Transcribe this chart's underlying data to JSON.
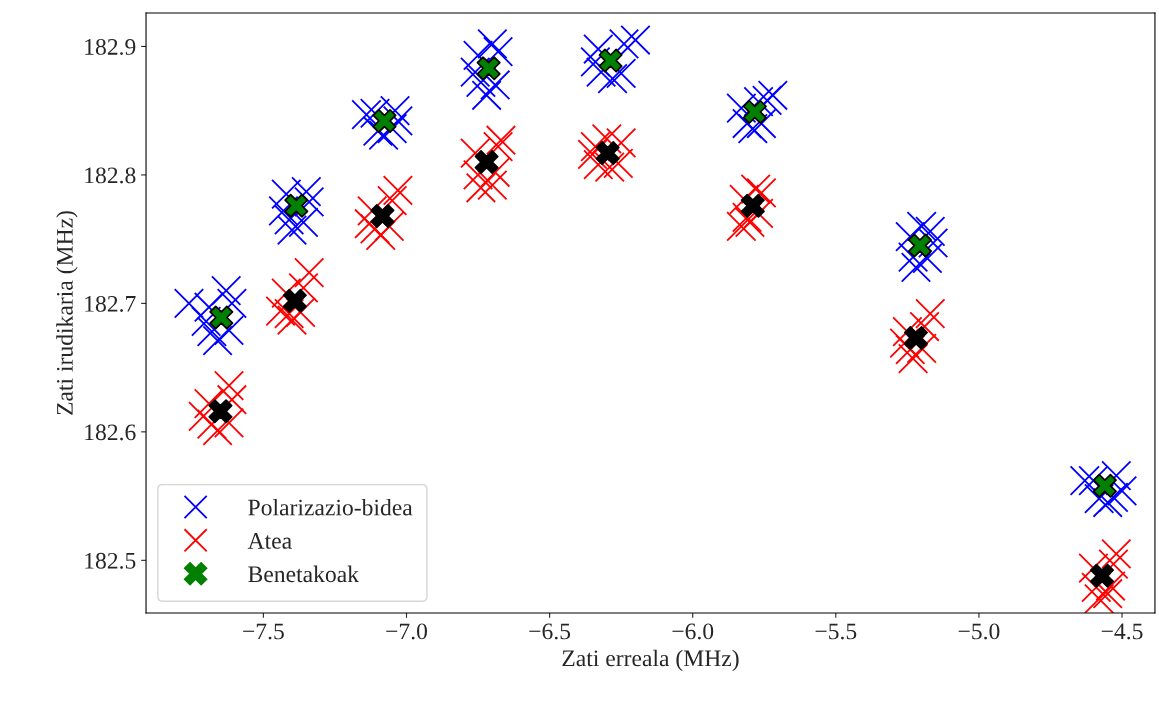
{
  "chart_data": {
    "type": "scatter",
    "xlabel": "Zati erreala (MHz)",
    "ylabel": "Zati irudikaria (MHz)",
    "xlim": [
      -7.91,
      -4.385
    ],
    "xticks": [
      {
        "value": -7.5,
        "label": "−7.5"
      },
      {
        "value": -7.0,
        "label": "−7.0"
      },
      {
        "value": -6.5,
        "label": "−6.5"
      },
      {
        "value": -6.0,
        "label": "−6.0"
      },
      {
        "value": -5.5,
        "label": "−5.5"
      },
      {
        "value": -5.0,
        "label": "−5.0"
      },
      {
        "value": -4.5,
        "label": "−4.5"
      }
    ],
    "ylim": [
      182.459,
      182.926
    ],
    "yticks": [
      {
        "value": 182.5,
        "label": "182.5"
      },
      {
        "value": 182.6,
        "label": "182.6"
      },
      {
        "value": 182.7,
        "label": "182.7"
      },
      {
        "value": 182.8,
        "label": "182.8"
      },
      {
        "value": 182.9,
        "label": "182.9"
      }
    ],
    "marker": "cross",
    "grid": false,
    "legend": "bottom left",
    "series": [
      {
        "name": "Polarizazio-bidea",
        "color": "#0000ff",
        "x": [
          -7.69,
          -7.61,
          -7.68,
          -7.62,
          -7.76,
          -7.63,
          -7.66,
          -7.7,
          -7.42,
          -7.35,
          -7.41,
          -7.36,
          -7.4,
          -7.34,
          -7.43,
          -7.11,
          -7.04,
          -7.1,
          -7.05,
          -7.14,
          -7.03,
          -7.08,
          -6.75,
          -6.68,
          -6.74,
          -6.69,
          -6.72,
          -6.7,
          -6.76,
          -6.33,
          -6.24,
          -6.32,
          -6.25,
          -6.2,
          -6.34,
          -6.28,
          -5.83,
          -5.74,
          -5.81,
          -5.76,
          -5.72,
          -5.79,
          -5.77,
          -5.24,
          -5.17,
          -5.23,
          -5.18,
          -5.22,
          -5.16,
          -5.2,
          -4.6,
          -4.52,
          -4.58,
          -4.53,
          -4.63,
          -4.5,
          -4.55
        ],
        "values": [
          182.697,
          182.7,
          182.678,
          182.679,
          182.7,
          182.71,
          182.671,
          182.686,
          182.785,
          182.787,
          182.765,
          182.763,
          182.757,
          182.779,
          182.772,
          182.848,
          182.85,
          182.834,
          182.836,
          182.847,
          182.842,
          182.831,
          182.893,
          182.896,
          182.872,
          182.87,
          182.862,
          182.902,
          182.88,
          182.898,
          182.902,
          182.88,
          182.879,
          182.905,
          182.888,
          182.875,
          182.852,
          182.858,
          182.84,
          182.84,
          182.862,
          182.836,
          182.857,
          182.752,
          182.756,
          182.736,
          182.735,
          182.728,
          182.747,
          182.76,
          182.562,
          182.566,
          182.548,
          182.549,
          182.562,
          182.554,
          182.545
        ]
      },
      {
        "name": "Atea",
        "color": "#ff0000",
        "x": [
          -7.69,
          -7.61,
          -7.68,
          -7.62,
          -7.62,
          -7.71,
          -7.66,
          -7.42,
          -7.36,
          -7.41,
          -7.37,
          -7.34,
          -7.44,
          -7.4,
          -7.12,
          -7.05,
          -7.11,
          -7.06,
          -7.03,
          -7.13,
          -7.09,
          -6.76,
          -6.68,
          -6.75,
          -6.69,
          -6.67,
          -6.74,
          -6.7,
          -6.34,
          -6.25,
          -6.33,
          -6.26,
          -6.3,
          -6.29,
          -6.35,
          -5.82,
          -5.76,
          -5.81,
          -5.77,
          -5.83,
          -5.78,
          -5.8,
          -5.25,
          -5.19,
          -5.24,
          -5.2,
          -5.17,
          -5.23,
          -5.26,
          -4.6,
          -4.53,
          -4.59,
          -4.54,
          -4.52,
          -4.58,
          -4.55
        ],
        "values": [
          182.622,
          182.625,
          182.606,
          182.607,
          182.636,
          182.612,
          182.601,
          182.708,
          182.712,
          182.692,
          182.693,
          182.724,
          182.694,
          182.687,
          182.772,
          182.78,
          182.758,
          182.76,
          182.788,
          182.762,
          182.753,
          182.817,
          182.822,
          182.8,
          182.802,
          182.827,
          182.79,
          182.792,
          182.822,
          182.825,
          182.808,
          182.809,
          182.828,
          182.806,
          182.816,
          182.781,
          182.786,
          182.767,
          182.77,
          182.76,
          182.789,
          182.763,
          182.678,
          182.682,
          182.664,
          182.665,
          182.692,
          182.657,
          182.669,
          182.494,
          182.497,
          182.479,
          182.48,
          182.505,
          182.47,
          182.474
        ]
      },
      {
        "name": "Benetakoak",
        "color": "#008000",
        "x": [
          -7.647,
          -7.385,
          -7.077,
          -6.713,
          -6.287,
          -5.783,
          -5.206,
          -4.56
        ],
        "values": [
          182.689,
          182.776,
          182.842,
          182.883,
          182.889,
          182.849,
          182.745,
          182.558
        ]
      },
      {
        "color": "#000000",
        "x": [
          -7.65,
          -7.39,
          -7.084,
          -6.72,
          -6.297,
          -5.79,
          -5.22,
          -4.57
        ],
        "values": [
          182.616,
          182.702,
          182.768,
          182.81,
          182.817,
          182.776,
          182.673,
          182.488
        ]
      }
    ]
  }
}
